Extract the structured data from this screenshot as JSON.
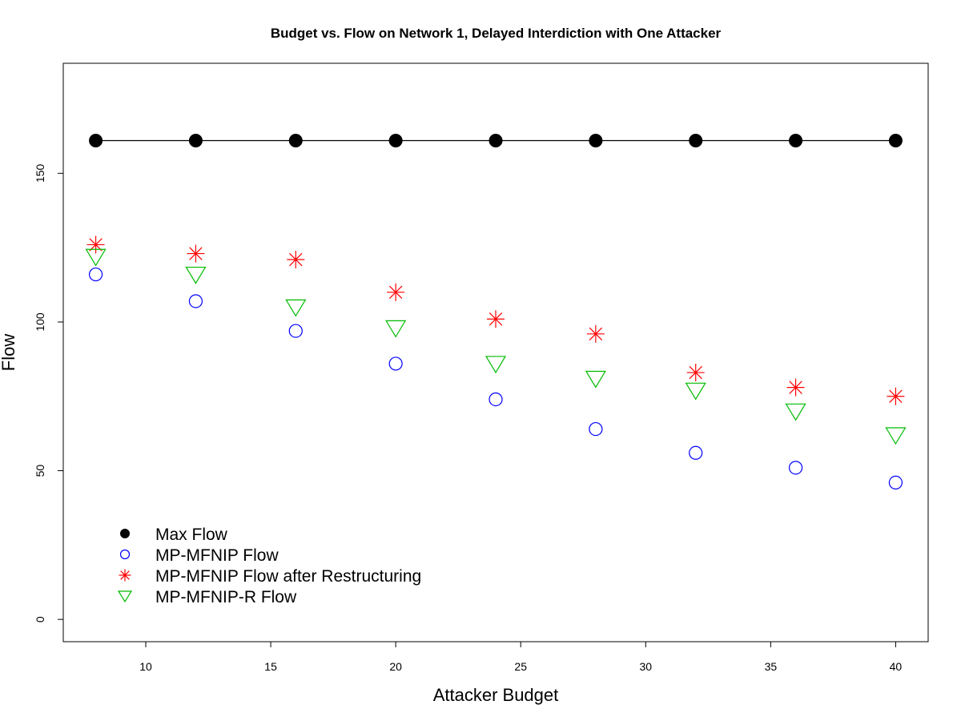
{
  "chart_data": {
    "type": "scatter",
    "title": "Budget vs. Flow on Network 1, Delayed Interdiction with One Attacker",
    "xlabel": "Attacker Budget",
    "ylabel": "Flow",
    "xlim": [
      6.7,
      41.3
    ],
    "ylim": [
      -7.5,
      187
    ],
    "xticks": [
      10,
      15,
      20,
      25,
      30,
      35,
      40
    ],
    "yticks": [
      0,
      50,
      100,
      150
    ],
    "grid": false,
    "legend_position": "bottom-left",
    "x": [
      8,
      12,
      16,
      20,
      24,
      28,
      32,
      36,
      40
    ],
    "series": [
      {
        "name": "Max Flow",
        "marker": "filled-circle",
        "line": true,
        "color": "#000000",
        "values": [
          161,
          161,
          161,
          161,
          161,
          161,
          161,
          161,
          161
        ]
      },
      {
        "name": "MP-MFNIP Flow",
        "marker": "open-circle",
        "line": false,
        "color": "#0000ff",
        "values": [
          116,
          107,
          97,
          86,
          74,
          64,
          56,
          51,
          46
        ]
      },
      {
        "name": "MP-MFNIP Flow after Restructuring",
        "marker": "asterisk",
        "line": false,
        "color": "#ff0000",
        "values": [
          126,
          123,
          121,
          110,
          101,
          96,
          83,
          78,
          75
        ]
      },
      {
        "name": "MP-MFNIP-R Flow",
        "marker": "open-triangle-down",
        "line": false,
        "color": "#00bb00",
        "values": [
          122,
          116,
          105,
          98,
          86,
          81,
          77,
          70,
          62
        ]
      }
    ]
  }
}
